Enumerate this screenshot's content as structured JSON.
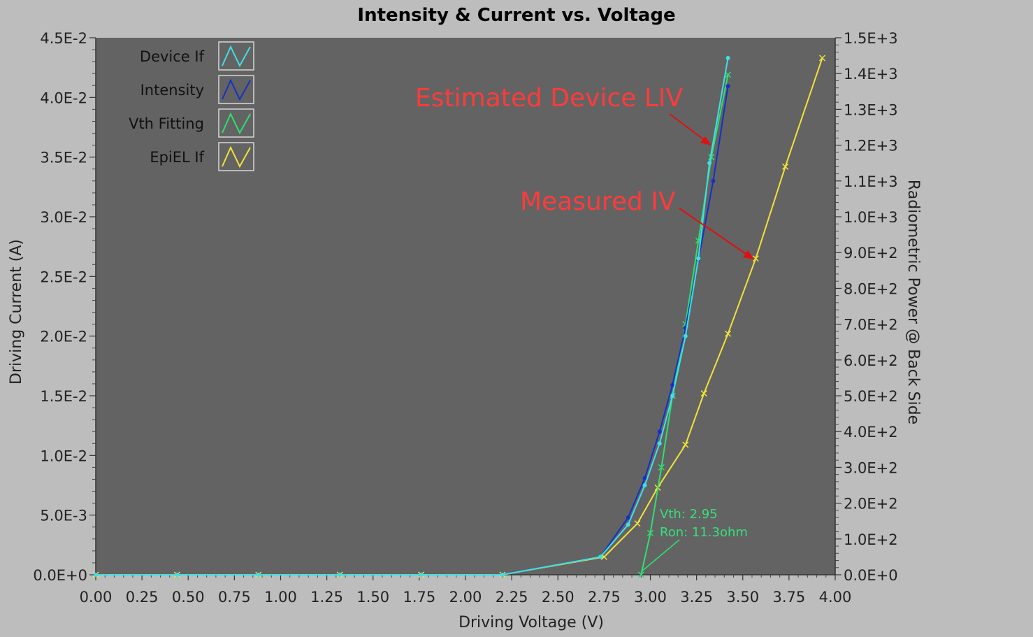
{
  "chart_data": {
    "type": "line",
    "title": "Intensity & Current vs. Voltage",
    "xlabel": "Driving Voltage (V)",
    "ylabel": "Driving Current (A)",
    "y2label": "Radiometric Power @ Back Side",
    "xlim": [
      0,
      4.0
    ],
    "ylim": [
      0,
      0.045
    ],
    "y2lim": [
      0,
      1500
    ],
    "x_ticks": [
      "0.00",
      "0.25",
      "0.50",
      "0.75",
      "1.00",
      "1.25",
      "1.50",
      "1.75",
      "2.00",
      "2.25",
      "2.50",
      "2.75",
      "3.00",
      "3.25",
      "3.50",
      "3.75",
      "4.00"
    ],
    "y_ticks": [
      "0.0E+0",
      "5.0E-3",
      "1.0E-2",
      "1.5E-2",
      "2.0E-2",
      "2.5E-2",
      "3.0E-2",
      "3.5E-2",
      "4.0E-2",
      "4.5E-2"
    ],
    "y2_ticks": [
      "0.0E+0",
      "1.0E+2",
      "2.0E+2",
      "3.0E+2",
      "4.0E+2",
      "5.0E+2",
      "6.0E+2",
      "7.0E+2",
      "8.0E+2",
      "9.0E+2",
      "1.0E+3",
      "1.1E+3",
      "1.2E+3",
      "1.3E+3",
      "1.4E+3",
      "1.5E+3"
    ],
    "legend_position": "top-left",
    "series": [
      {
        "name": "Device If",
        "axis": "left",
        "color": "#3fe0e6",
        "marker": "dot",
        "x": [
          0.0,
          0.44,
          0.88,
          1.32,
          1.76,
          2.2,
          2.73,
          2.88,
          2.97,
          3.05,
          3.12,
          3.19,
          3.26,
          3.32,
          3.42
        ],
        "y": [
          0.0,
          0.0,
          0.0,
          0.0,
          0.0,
          0.0,
          0.0015,
          0.0042,
          0.0075,
          0.011,
          0.015,
          0.02,
          0.0265,
          0.0345,
          0.0433
        ]
      },
      {
        "name": "Intensity",
        "axis": "right",
        "color": "#1530c8",
        "marker": "dot",
        "x": [
          0.0,
          2.2,
          2.73,
          2.88,
          2.97,
          3.05,
          3.12,
          3.19,
          3.26,
          3.34,
          3.42
        ],
        "y": [
          0,
          0,
          50,
          160,
          270,
          400,
          530,
          690,
          880,
          1100,
          1365
        ]
      },
      {
        "name": "Vth Fitting",
        "axis": "left",
        "color": "#2ee070",
        "marker": "x",
        "x": [
          2.95,
          3.0,
          3.06,
          3.12,
          3.19,
          3.26,
          3.33,
          3.42
        ],
        "y": [
          0.0,
          0.0035,
          0.009,
          0.015,
          0.021,
          0.028,
          0.035,
          0.0419
        ]
      },
      {
        "name": "EpiEL If",
        "axis": "left",
        "color": "#f2e23a",
        "marker": "x",
        "x": [
          0.0,
          0.44,
          0.88,
          1.32,
          1.76,
          2.2,
          2.75,
          2.93,
          3.04,
          3.19,
          3.29,
          3.42,
          3.57,
          3.73,
          3.93
        ],
        "y": [
          0.0,
          0.0,
          0.0,
          0.0,
          0.0,
          0.0,
          0.0015,
          0.0043,
          0.0073,
          0.0109,
          0.0152,
          0.0202,
          0.0265,
          0.0342,
          0.0433
        ]
      }
    ],
    "annotations": {
      "estimated": "Estimated Device LIV",
      "measured": "Measured IV",
      "vth": "Vth: 2.95",
      "ron": "Ron: 11.3ohm"
    },
    "colors": {
      "plot_background": "#636363",
      "page_background": "#bdbdbd",
      "annotation_red": "#ff3b3b",
      "arrow_red": "#e01010"
    }
  }
}
